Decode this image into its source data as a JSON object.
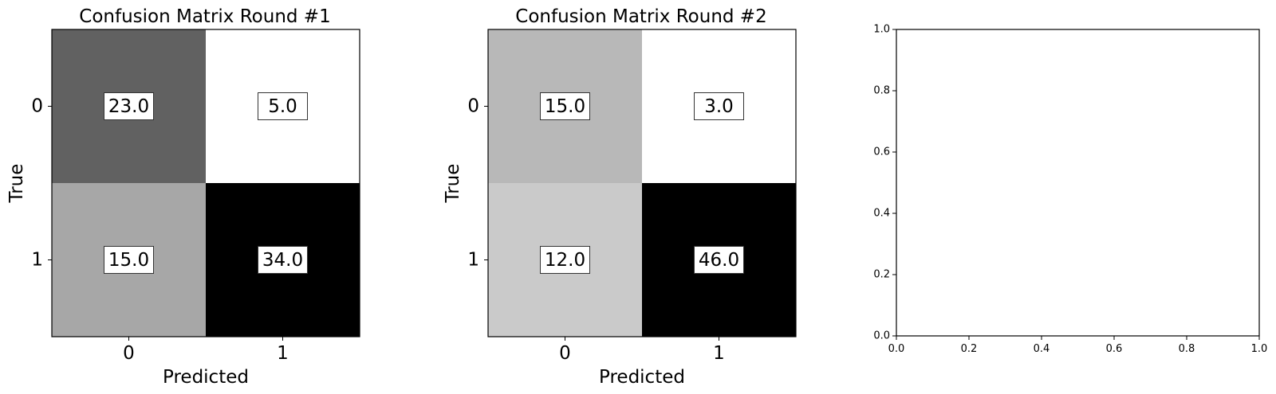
{
  "chart_data": [
    {
      "type": "heatmap",
      "title": "Confusion Matrix Round #1",
      "xlabel": "Predicted",
      "ylabel": "True",
      "x_ticks": [
        "0",
        "1"
      ],
      "y_ticks": [
        "0",
        "1"
      ],
      "matrix": [
        [
          23.0,
          5.0
        ],
        [
          15.0,
          34.0
        ]
      ],
      "cell_labels": [
        [
          "23.0",
          "5.0"
        ],
        [
          "15.0",
          "34.0"
        ]
      ],
      "colormap": "Greys"
    },
    {
      "type": "heatmap",
      "title": "Confusion Matrix Round #2",
      "xlabel": "Predicted",
      "ylabel": "True",
      "x_ticks": [
        "0",
        "1"
      ],
      "y_ticks": [
        "0",
        "1"
      ],
      "matrix": [
        [
          15.0,
          3.0
        ],
        [
          12.0,
          46.0
        ]
      ],
      "cell_labels": [
        [
          "15.0",
          "3.0"
        ],
        [
          "12.0",
          "46.0"
        ]
      ],
      "colormap": "Greys"
    },
    {
      "type": "scatter",
      "title": "",
      "xlabel": "",
      "ylabel": "",
      "xlim": [
        0.0,
        1.0
      ],
      "ylim": [
        0.0,
        1.0
      ],
      "x_ticks": [
        "0.0",
        "0.2",
        "0.4",
        "0.6",
        "0.8",
        "1.0"
      ],
      "y_ticks": [
        "0.0",
        "0.2",
        "0.4",
        "0.6",
        "0.8",
        "1.0"
      ],
      "series": []
    }
  ]
}
